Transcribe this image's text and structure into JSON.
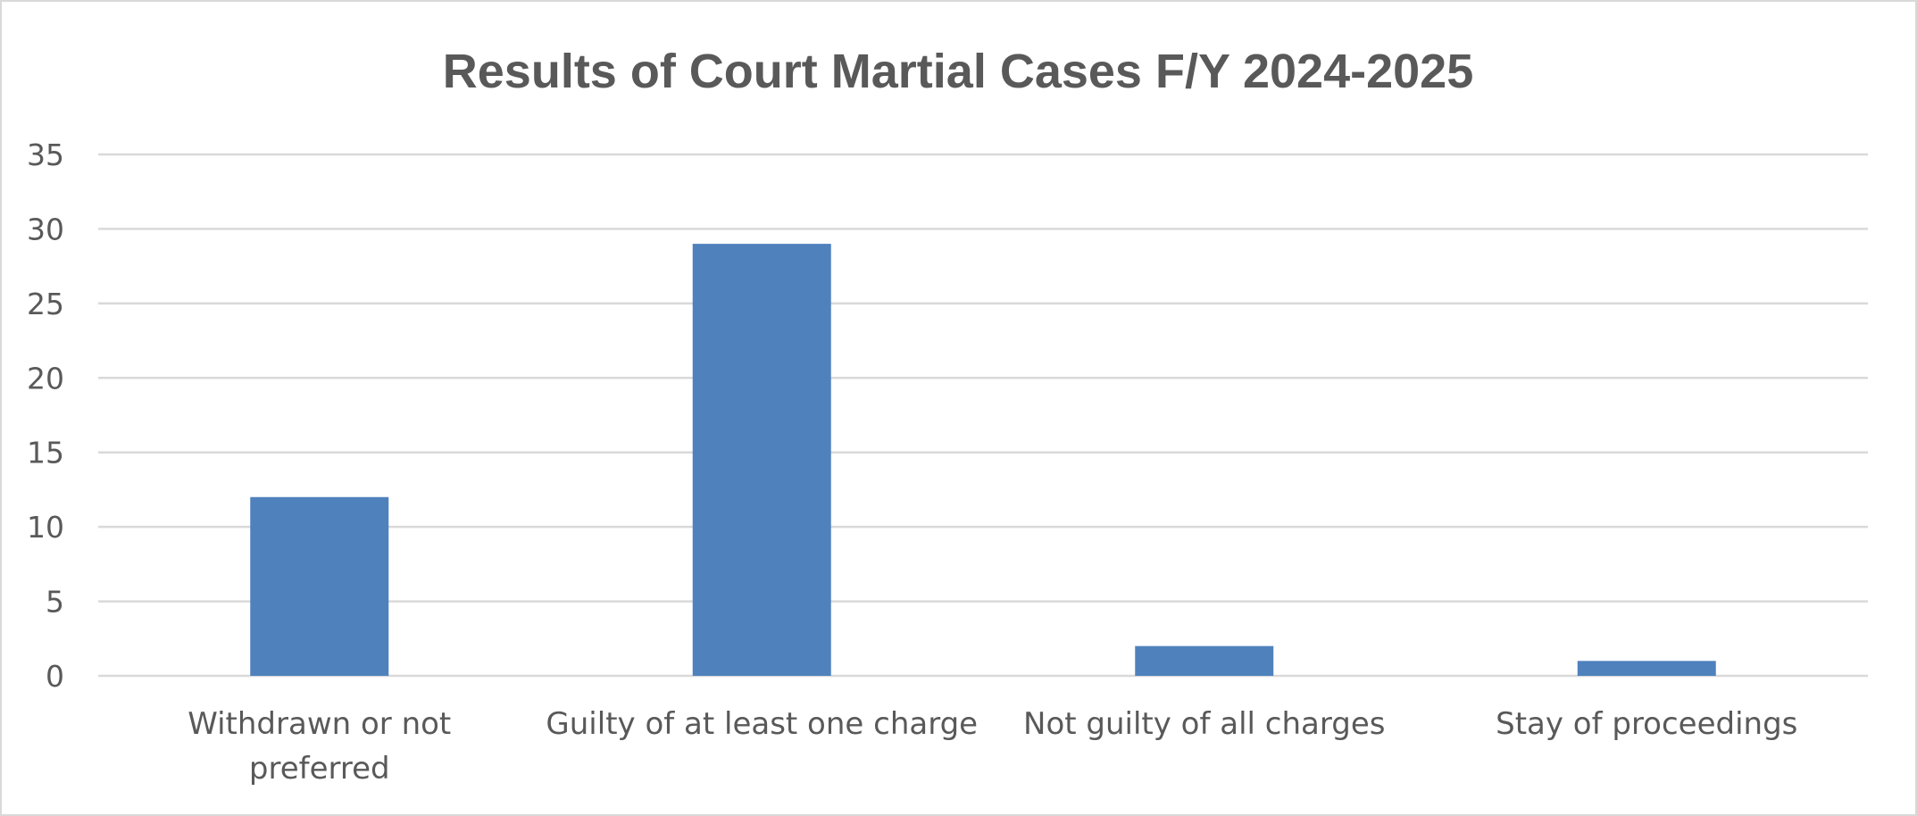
{
  "chart_data": {
    "type": "bar",
    "title": "Results of Court Martial Cases F/Y 2024-2025",
    "xlabel": "",
    "ylabel": "",
    "categories": [
      [
        "Withdrawn or not",
        "preferred"
      ],
      [
        "Guilty of at least one charge"
      ],
      [
        "Not guilty of all charges"
      ],
      [
        "Stay of proceedings"
      ]
    ],
    "values": [
      12,
      29,
      2,
      1
    ],
    "ylim": [
      0,
      35
    ],
    "yticks": [
      0,
      5,
      10,
      15,
      20,
      25,
      30,
      35
    ],
    "grid": true,
    "legend": "none",
    "bar_color": "#4f81bd"
  }
}
